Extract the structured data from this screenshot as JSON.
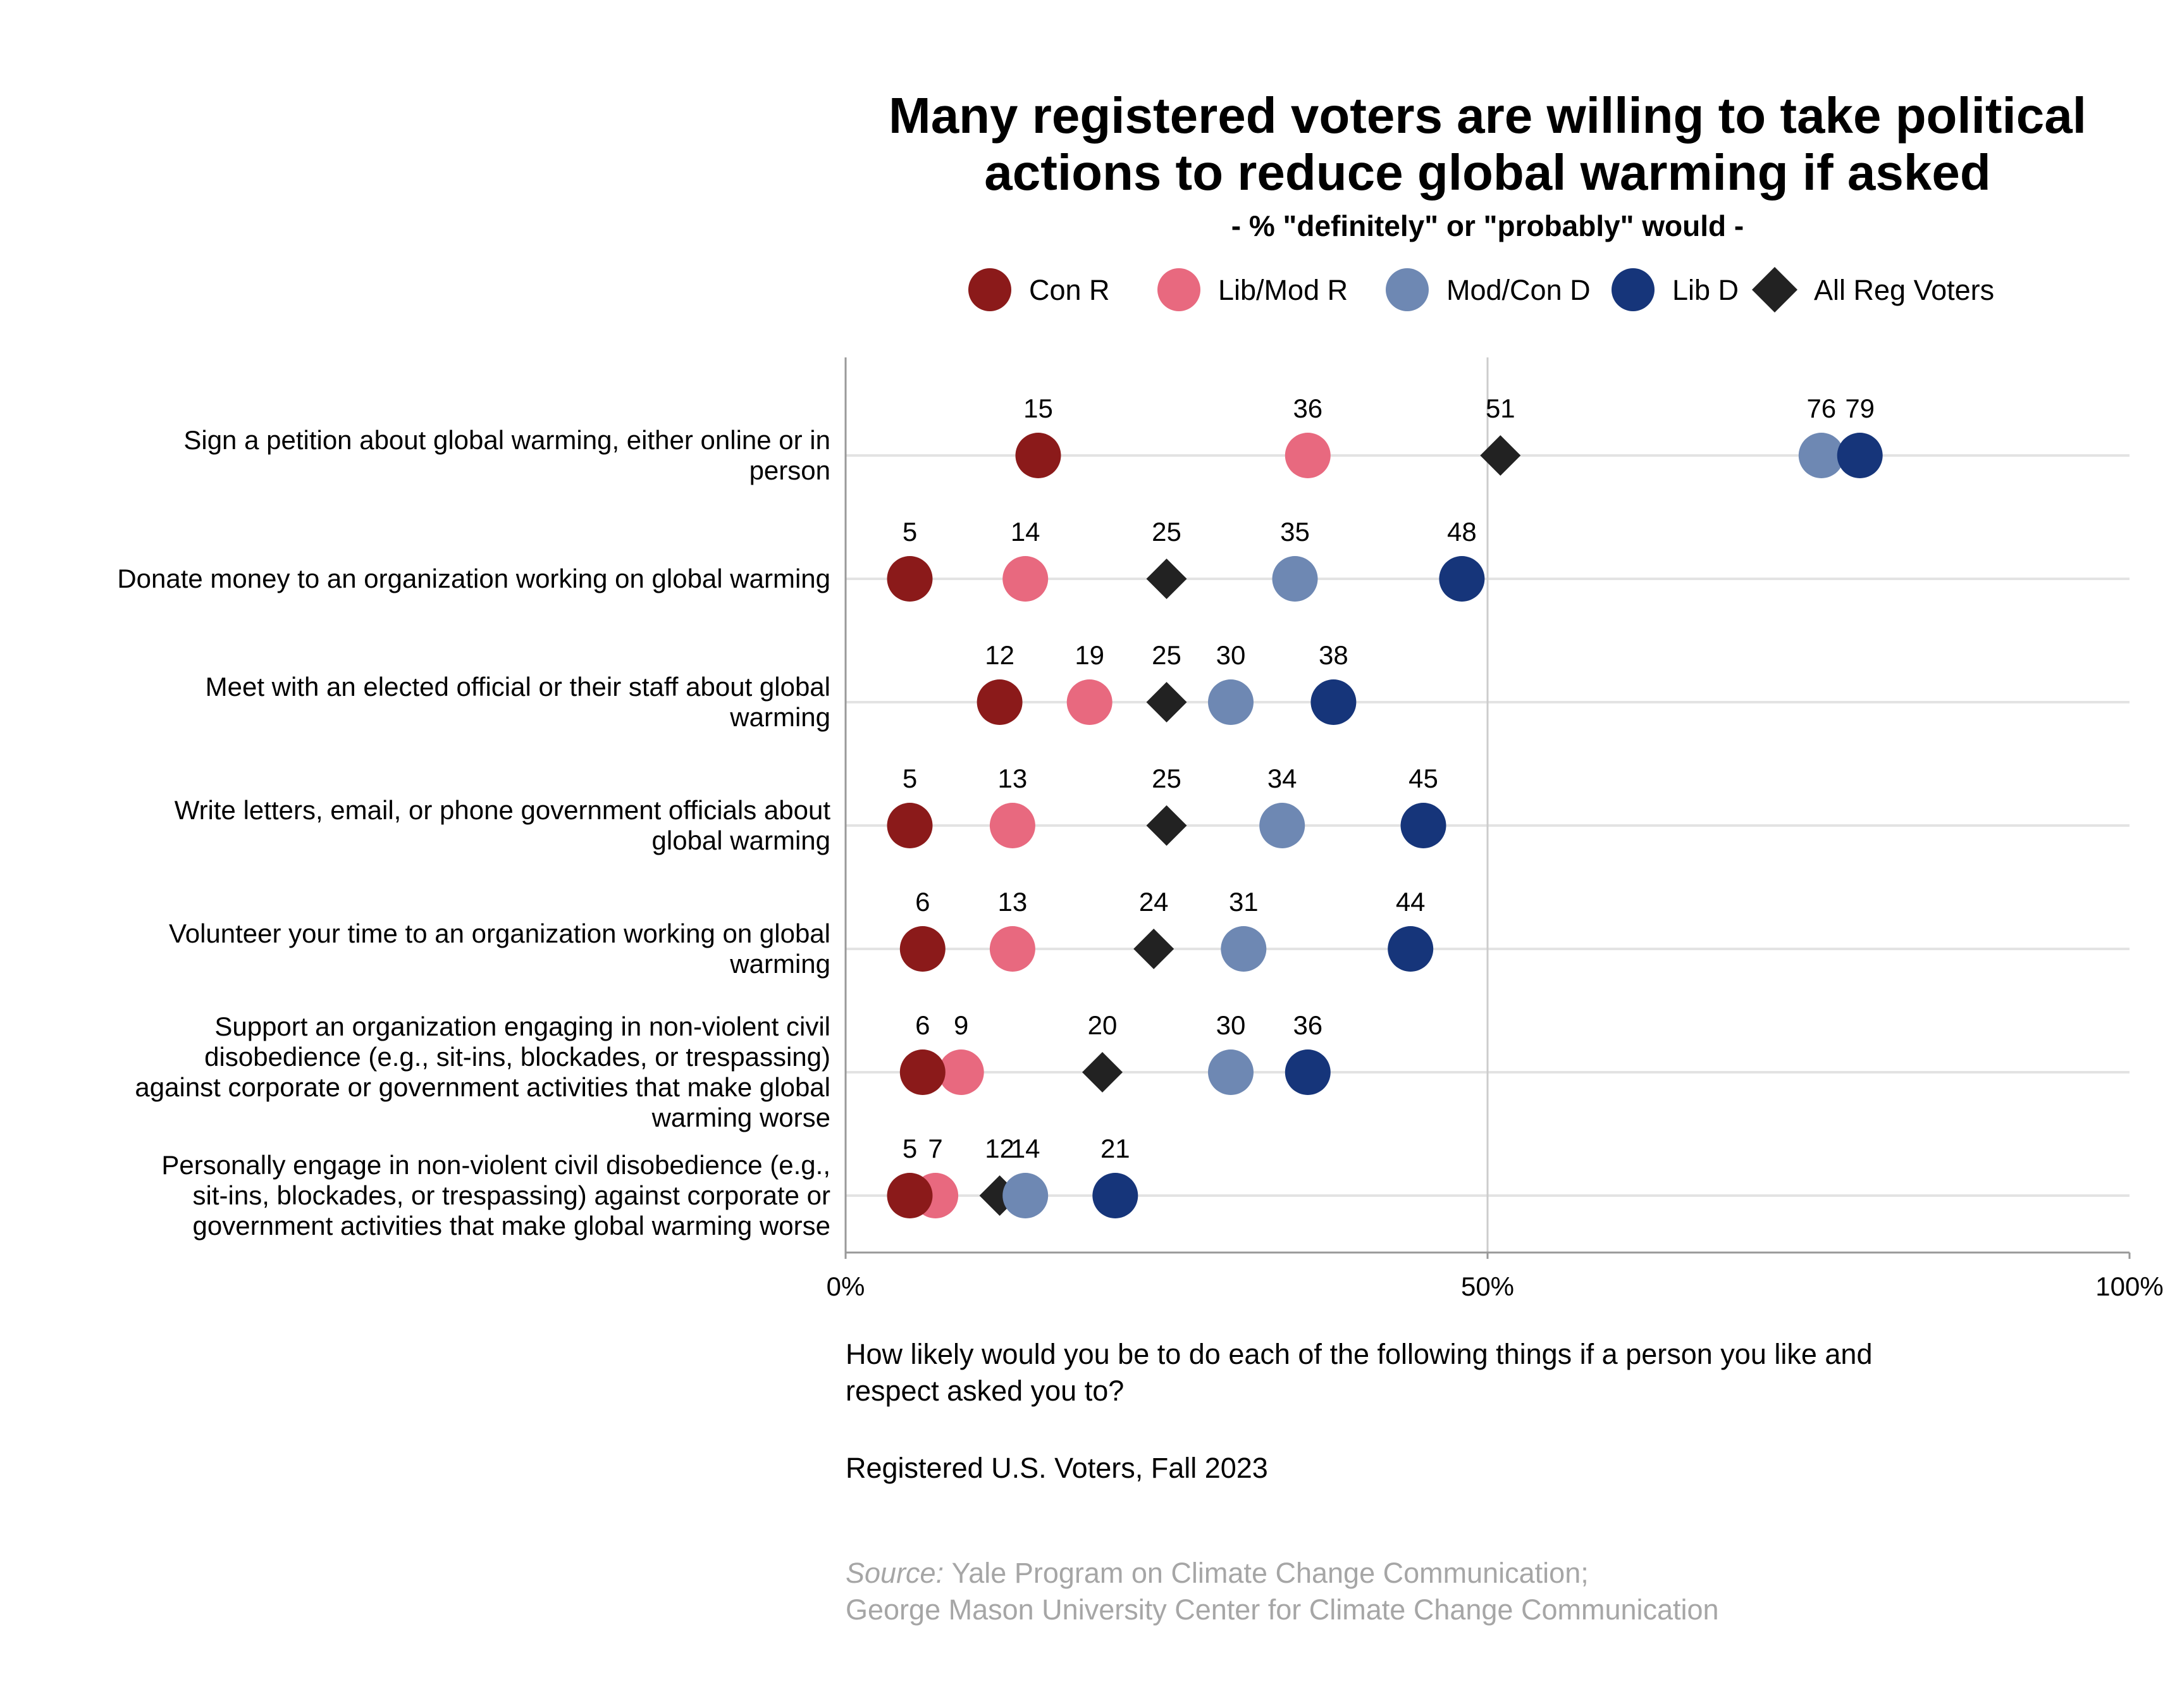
{
  "title_lines": [
    "Many registered voters are willing to take political",
    "actions to reduce global warming if asked"
  ],
  "subtitle": "- % \"definitely\" or \"probably\" would -",
  "legend": [
    {
      "label": "Con R",
      "shape": "circle",
      "color": "#8b1a1a"
    },
    {
      "label": "Lib/Mod R",
      "shape": "circle",
      "color": "#e8697f"
    },
    {
      "label": "Mod/Con D",
      "shape": "circle",
      "color": "#6e88b3"
    },
    {
      "label": "Lib D",
      "shape": "circle",
      "color": "#16357a"
    },
    {
      "label": "All Reg Voters",
      "shape": "diamond",
      "color": "#222222"
    }
  ],
  "footnote": {
    "question_lines": [
      "How likely would you be to do each of the following things if a person you like and",
      "respect asked you to?"
    ],
    "population": "Registered U.S. Voters, Fall 2023",
    "source_prefix": "Source:",
    "source_lines": [
      "Yale Program on Climate Change Communication;",
      "George Mason University Center for Climate Change Communication"
    ]
  },
  "chart_data": {
    "type": "scatter",
    "orientation": "horizontal dot plot",
    "xlim": [
      0,
      100
    ],
    "x_ticks": [
      0,
      50,
      100
    ],
    "x_tick_labels": [
      "0%",
      "50%",
      "100%"
    ],
    "grid": "horizontal row lines and vertical line at 50%",
    "legend_placement": "top",
    "categories": [
      [
        "Sign a petition about global warming, either online or in",
        "person"
      ],
      [
        "Donate money to an organization working on global warming"
      ],
      [
        "Meet with an elected official or their staff about global",
        "warming"
      ],
      [
        "Write letters, email, or phone government officials about",
        "global warming"
      ],
      [
        "Volunteer your time to an organization working on global",
        "warming"
      ],
      [
        "Support an organization engaging in non-violent civil",
        "disobedience (e.g., sit-ins, blockades, or trespassing)",
        "against corporate or government activities that make global",
        "warming worse"
      ],
      [
        "Personally engage in non-violent civil disobedience (e.g.,",
        "sit-ins, blockades, or trespassing) against corporate or",
        "government activities that make global warming worse"
      ]
    ],
    "series": [
      {
        "name": "Con R",
        "values": [
          15,
          5,
          12,
          5,
          6,
          6,
          5
        ]
      },
      {
        "name": "Lib/Mod R",
        "values": [
          36,
          14,
          19,
          13,
          13,
          9,
          7
        ]
      },
      {
        "name": "Mod/Con D",
        "values": [
          76,
          35,
          30,
          34,
          31,
          30,
          14
        ]
      },
      {
        "name": "Lib D",
        "values": [
          79,
          48,
          38,
          45,
          44,
          36,
          21
        ]
      },
      {
        "name": "All Reg Voters",
        "values": [
          51,
          25,
          25,
          25,
          24,
          20,
          12
        ]
      }
    ]
  }
}
